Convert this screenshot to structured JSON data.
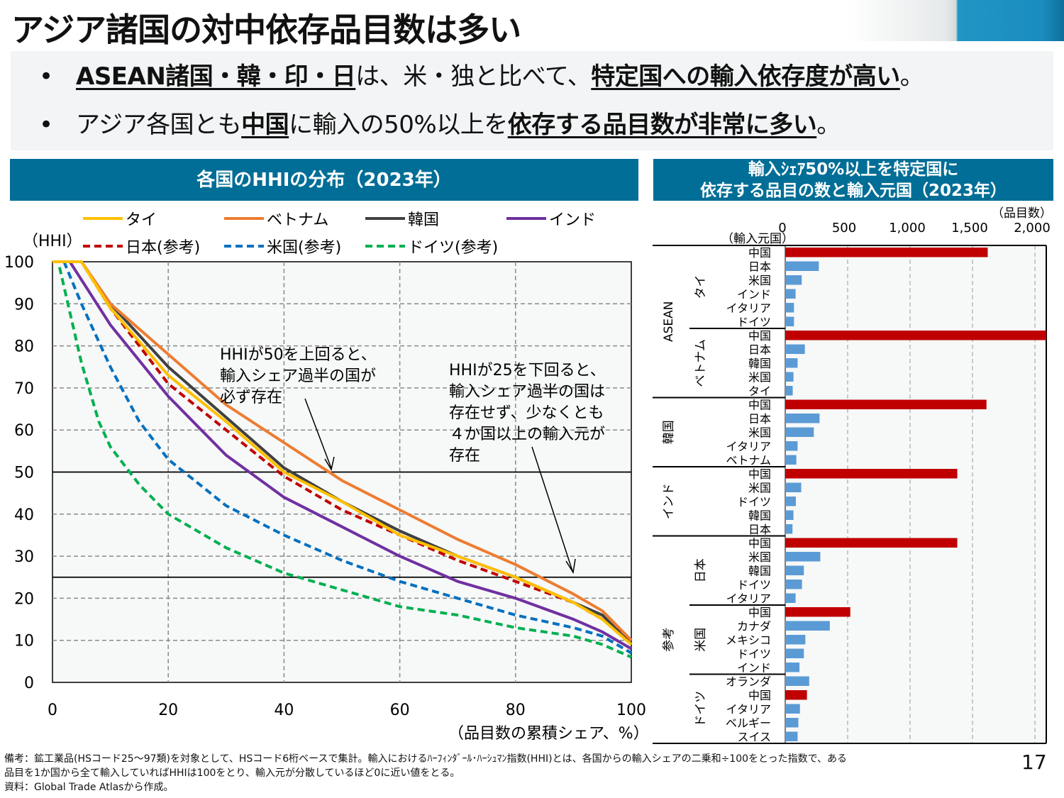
{
  "title": "アジア諸国の対中依存品目数は多い",
  "bullets": [
    {
      "u1": "ASEAN諸国・韓・印・日",
      "t1": "は、米・独と比べて、",
      "u2": "特定国への輸入依存度が高い",
      "t2": "。"
    },
    {
      "t0": "アジア各国とも",
      "u1": "中国",
      "t1": "に輸入の50%以上を",
      "u2": "依存する品目数が非常に多い",
      "t2": "。"
    }
  ],
  "left_header": "各国のHHIの分布（2023年）",
  "right_header": {
    "line1": "輸入ｼｪｱ50%以上を特定国に",
    "line2": "依存する品目の数と輸入元国（2023年）"
  },
  "footer": {
    "line1": "備考：鉱工業品(HSコード25～97類)を対象として、HSコード6桁ベースで集計。輸入におけるﾊｰﾌｨﾝﾀﾞｰﾙ･ﾊｰｼｭﾏﾝ指数(HHI)とは、各国からの輸入シェアの二乗和÷100をとった指数で、ある",
    "line2": "品目を1か国から全て輸入していればHHIは100をとり、輸入元が分散しているほど0に近い値をとる。",
    "line3": "資料：Global Trade Atlasから作成。"
  },
  "page_number": "17",
  "chart_data": [
    {
      "type": "line",
      "ylabel": "（HHI）",
      "xlabel": "（品目数の累積シェア、%）",
      "xlim": [
        0,
        100
      ],
      "ylim": [
        0,
        100
      ],
      "xticks": [
        0,
        20,
        40,
        60,
        80,
        100
      ],
      "yticks": [
        0,
        10,
        20,
        30,
        40,
        50,
        60,
        70,
        80,
        90,
        100
      ],
      "grid": true,
      "reference_lines": [
        50,
        25
      ],
      "legend_position": "top",
      "annotations": [
        {
          "lines": [
            "HHIが50を上回ると、",
            "輸入シェア過半の国が",
            "必ず存在"
          ]
        },
        {
          "lines": [
            "HHIが25を下回ると、",
            "輸入シェア過半の国は",
            "存在せず、少なくとも",
            "４か国以上の輸入元が",
            "存在"
          ]
        }
      ],
      "series": [
        {
          "name": "タイ",
          "color": "#ffc000",
          "dashed": false,
          "points": [
            [
              0,
              100
            ],
            [
              5,
              100
            ],
            [
              10,
              89
            ],
            [
              20,
              73
            ],
            [
              30,
              62
            ],
            [
              40,
              50
            ],
            [
              50,
              43
            ],
            [
              60,
              35
            ],
            [
              70,
              30
            ],
            [
              80,
              25
            ],
            [
              90,
              19
            ],
            [
              95,
              15
            ],
            [
              100,
              9
            ]
          ]
        },
        {
          "name": "ベトナム",
          "color": "#ed7d31",
          "dashed": false,
          "points": [
            [
              0,
              100
            ],
            [
              5,
              100
            ],
            [
              10,
              90
            ],
            [
              20,
              78
            ],
            [
              30,
              66
            ],
            [
              40,
              57
            ],
            [
              50,
              48
            ],
            [
              60,
              41
            ],
            [
              70,
              34
            ],
            [
              80,
              28
            ],
            [
              90,
              21
            ],
            [
              95,
              17
            ],
            [
              100,
              10
            ]
          ]
        },
        {
          "name": "韓国",
          "color": "#404040",
          "dashed": false,
          "points": [
            [
              0,
              100
            ],
            [
              5,
              100
            ],
            [
              10,
              90
            ],
            [
              20,
              75
            ],
            [
              30,
              63
            ],
            [
              40,
              51
            ],
            [
              50,
              43
            ],
            [
              60,
              36
            ],
            [
              70,
              30
            ],
            [
              80,
              25
            ],
            [
              90,
              19
            ],
            [
              95,
              16
            ],
            [
              100,
              9
            ]
          ]
        },
        {
          "name": "インド",
          "color": "#7030a0",
          "dashed": false,
          "points": [
            [
              0,
              100
            ],
            [
              3,
              100
            ],
            [
              10,
              85
            ],
            [
              20,
              68
            ],
            [
              30,
              54
            ],
            [
              40,
              44
            ],
            [
              50,
              37
            ],
            [
              60,
              30
            ],
            [
              70,
              24
            ],
            [
              80,
              20
            ],
            [
              90,
              15
            ],
            [
              95,
              12
            ],
            [
              100,
              8
            ]
          ]
        },
        {
          "name": "日本(参考)",
          "color": "#c00000",
          "dashed": true,
          "points": [
            [
              0,
              100
            ],
            [
              5,
              100
            ],
            [
              10,
              89
            ],
            [
              20,
              71
            ],
            [
              30,
              60
            ],
            [
              40,
              49
            ],
            [
              50,
              41
            ],
            [
              60,
              35
            ],
            [
              70,
              29
            ],
            [
              80,
              24
            ],
            [
              90,
              19
            ],
            [
              95,
              15
            ],
            [
              100,
              10
            ]
          ]
        },
        {
          "name": "米国(参考)",
          "color": "#0070c0",
          "dashed": true,
          "points": [
            [
              0,
              100
            ],
            [
              2,
              100
            ],
            [
              5,
              90
            ],
            [
              10,
              75
            ],
            [
              15,
              62
            ],
            [
              20,
              53
            ],
            [
              30,
              42
            ],
            [
              40,
              35
            ],
            [
              50,
              29
            ],
            [
              60,
              24
            ],
            [
              70,
              20
            ],
            [
              80,
              16
            ],
            [
              90,
              13
            ],
            [
              95,
              11
            ],
            [
              100,
              7
            ]
          ]
        },
        {
          "name": "ドイツ(参考)",
          "color": "#00b050",
          "dashed": true,
          "points": [
            [
              0,
              100
            ],
            [
              1,
              100
            ],
            [
              3,
              88
            ],
            [
              5,
              76
            ],
            [
              8,
              62
            ],
            [
              10,
              56
            ],
            [
              15,
              47
            ],
            [
              20,
              40
            ],
            [
              30,
              32
            ],
            [
              40,
              26
            ],
            [
              50,
              22
            ],
            [
              60,
              18
            ],
            [
              70,
              16
            ],
            [
              80,
              13
            ],
            [
              90,
              11
            ],
            [
              95,
              9
            ],
            [
              100,
              6
            ]
          ]
        }
      ]
    },
    {
      "type": "bar",
      "orientation": "horizontal",
      "unit_label": "（品目数）",
      "category_label": "（輸入元国）",
      "xlim": [
        0,
        2000
      ],
      "xticks": [
        "0",
        "500",
        "1,000",
        "1,500",
        "2,000"
      ],
      "grid": true,
      "colors": {
        "china": "#c00000",
        "other": "#5b9bd5"
      },
      "groups": [
        {
          "region": "ASEAN",
          "country": "タイ",
          "rows": [
            [
              "中国",
              1622
            ],
            [
              "日本",
              269
            ],
            [
              "米国",
              132
            ],
            [
              "インド",
              83
            ],
            [
              "イタリア",
              70
            ],
            [
              "ドイツ",
              70
            ]
          ]
        },
        {
          "region": "ASEAN",
          "country": "ベトナム",
          "rows": [
            [
              "中国",
              2100
            ],
            [
              "日本",
              157
            ],
            [
              "韓国",
              99
            ],
            [
              "米国",
              66
            ],
            [
              "タイ",
              60
            ]
          ]
        },
        {
          "region": "韓国",
          "country": "",
          "rows": [
            [
              "中国",
              1612
            ],
            [
              "日本",
              275
            ],
            [
              "米国",
              229
            ],
            [
              "イタリア",
              99
            ],
            [
              "ベトナム",
              89
            ]
          ]
        },
        {
          "region": "インド",
          "country": "",
          "rows": [
            [
              "中国",
              1378
            ],
            [
              "米国",
              128
            ],
            [
              "ドイツ",
              85
            ],
            [
              "韓国",
              66
            ],
            [
              "日本",
              58
            ]
          ]
        },
        {
          "region": "参考",
          "country": "日本",
          "rows": [
            [
              "中国",
              1378
            ],
            [
              "米国",
              281
            ],
            [
              "韓国",
              149
            ],
            [
              "ドイツ",
              134
            ],
            [
              "イタリア",
              83
            ]
          ]
        },
        {
          "region": "参考",
          "country": "米国",
          "rows": [
            [
              "中国",
              521
            ],
            [
              "カナダ",
              357
            ],
            [
              "メキシコ",
              161
            ],
            [
              "ドイツ",
              149
            ],
            [
              "インド",
              114
            ]
          ]
        },
        {
          "region": "参考",
          "country": "ドイツ",
          "rows": [
            [
              "オランダ",
              192
            ],
            [
              "中国",
              174
            ],
            [
              "イタリア",
              118
            ],
            [
              "ベルギー",
              105
            ],
            [
              "スイス",
              99
            ]
          ]
        }
      ]
    }
  ]
}
